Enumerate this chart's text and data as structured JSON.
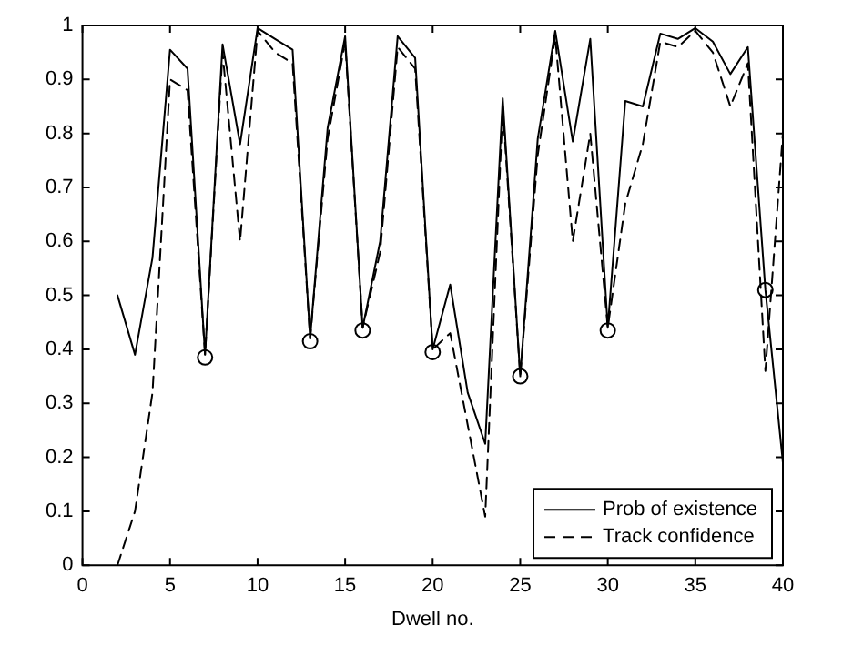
{
  "chart_data": {
    "type": "line",
    "xlabel": "Dwell no.",
    "x": [
      2,
      3,
      4,
      5,
      6,
      7,
      8,
      9,
      10,
      11,
      12,
      13,
      14,
      15,
      16,
      17,
      18,
      19,
      20,
      21,
      22,
      23,
      24,
      25,
      26,
      27,
      28,
      29,
      30,
      31,
      32,
      33,
      34,
      35,
      36,
      37,
      38,
      39,
      40
    ],
    "series": [
      {
        "name": "Prob of existence",
        "color": "#000000",
        "line_style": "solid",
        "marker": "none",
        "values": [
          0.5,
          0.39,
          0.57,
          0.955,
          0.92,
          0.39,
          0.965,
          0.78,
          0.995,
          0.975,
          0.955,
          0.42,
          0.81,
          0.98,
          0.44,
          0.6,
          0.98,
          0.94,
          0.4,
          0.52,
          0.32,
          0.225,
          0.865,
          0.35,
          0.79,
          0.99,
          0.785,
          0.975,
          0.44,
          0.86,
          0.85,
          0.985,
          0.975,
          0.995,
          0.97,
          0.91,
          0.96,
          0.51,
          0.19
        ]
      },
      {
        "name": "Track confidence",
        "color": "#000000",
        "line_style": "dashed",
        "marker": "none",
        "values": [
          0,
          0.1,
          0.32,
          0.9,
          0.88,
          0.39,
          0.95,
          0.6,
          0.99,
          0.95,
          0.93,
          0.42,
          0.79,
          0.97,
          0.44,
          0.58,
          0.96,
          0.92,
          0.4,
          0.43,
          0.26,
          0.09,
          0.85,
          0.35,
          0.76,
          0.98,
          0.6,
          0.8,
          0.44,
          0.67,
          0.78,
          0.97,
          0.96,
          0.99,
          0.95,
          0.85,
          0.93,
          0.36,
          0.8
        ]
      },
      {
        "type": "scatter",
        "color": "#000000",
        "marker": "circle",
        "x": [
          7,
          13,
          16,
          20,
          25,
          30,
          39
        ],
        "values": [
          0.385,
          0.415,
          0.435,
          0.395,
          0.35,
          0.435,
          0.51
        ]
      }
    ],
    "xlim": [
      0,
      40
    ],
    "xticks": [
      0,
      5,
      10,
      15,
      20,
      25,
      30,
      35,
      40
    ],
    "ylim": [
      0,
      1
    ],
    "yticks": [
      0,
      0.1,
      0.2,
      0.3,
      0.4,
      0.5,
      0.6,
      0.7,
      0.8,
      0.9,
      1
    ],
    "grid": false,
    "legend": "bottom right"
  }
}
